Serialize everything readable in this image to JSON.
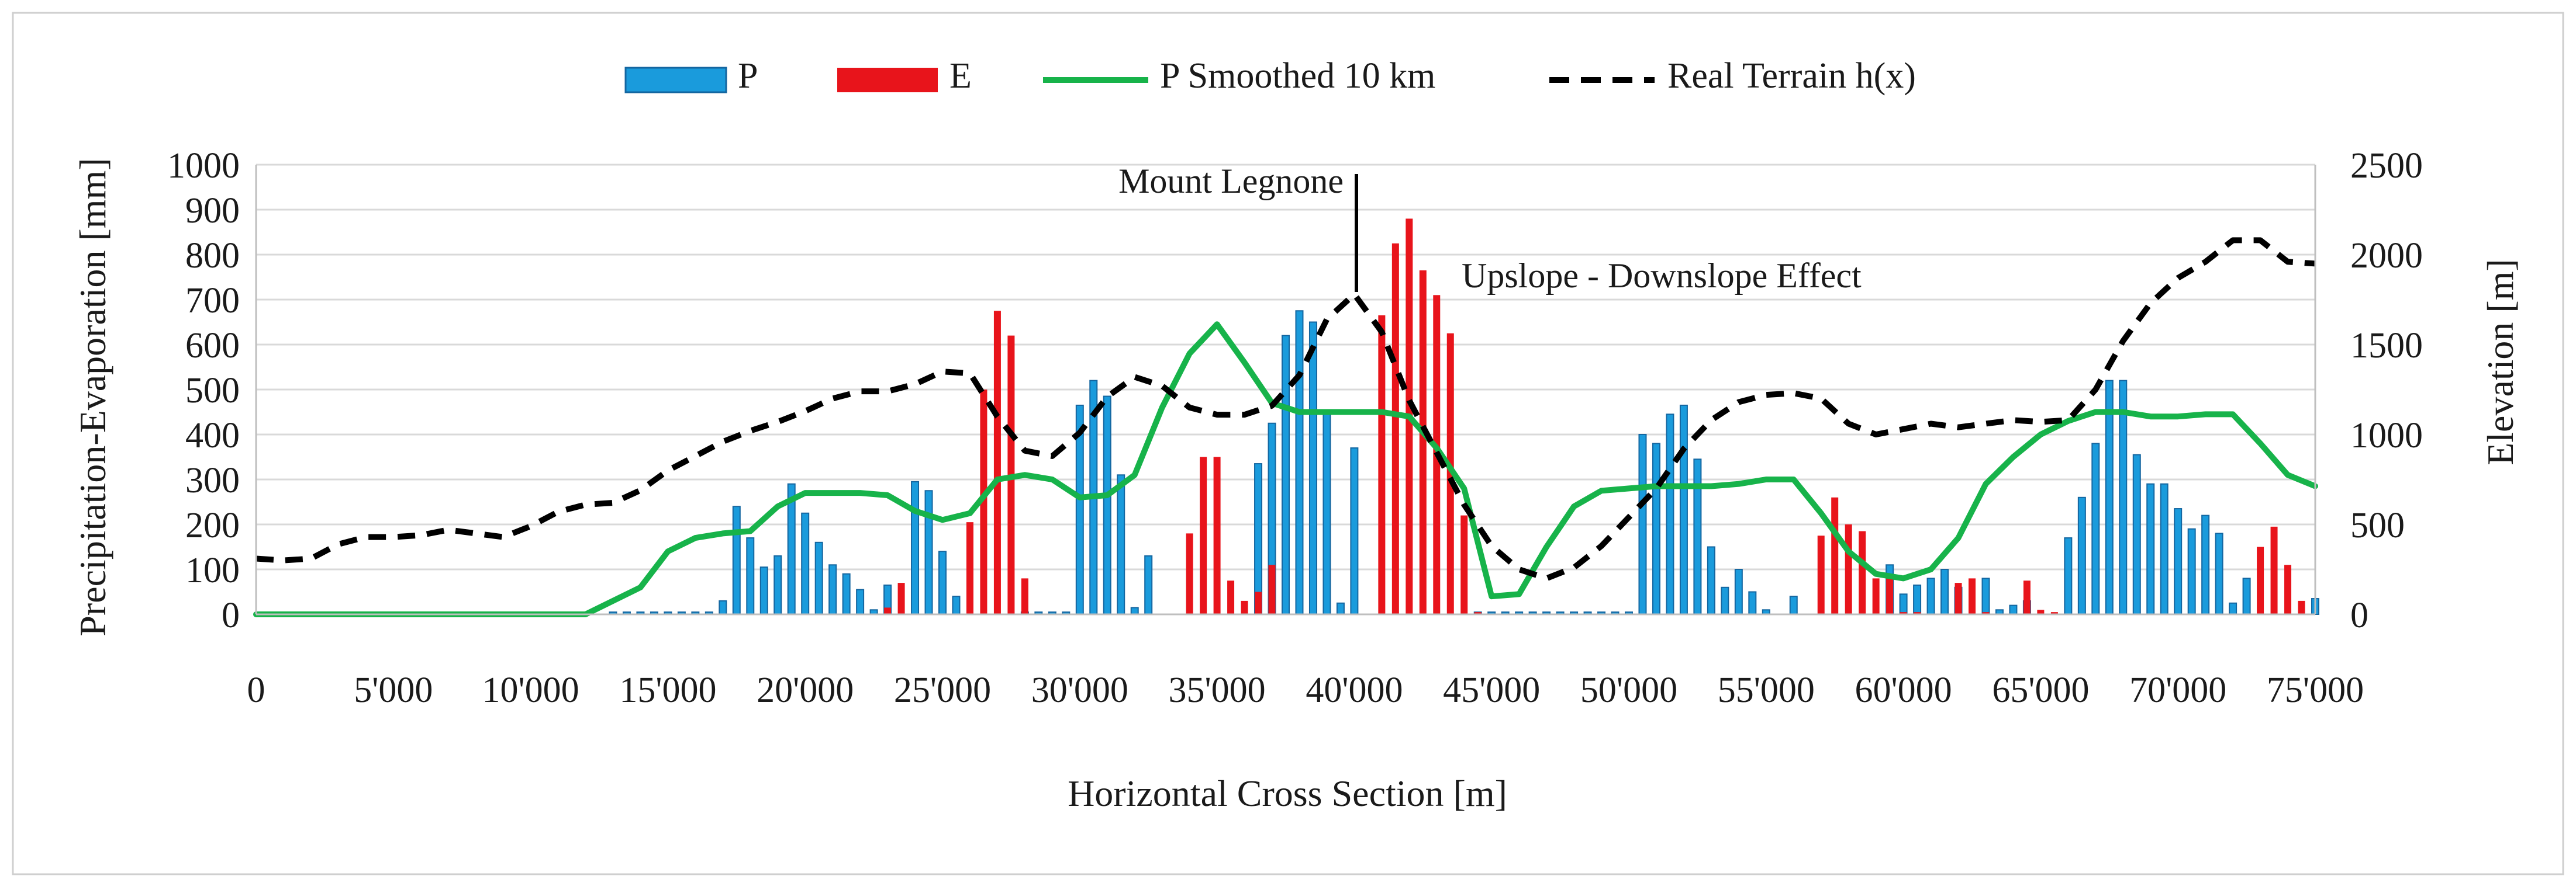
{
  "chart_data": {
    "type": "bar",
    "xlabel": "Horizontal Cross Section [m]",
    "ylabel": "Precipitation-Evaporation [mm]",
    "y2label": "Elevation [m]",
    "xlim": [
      0,
      75000
    ],
    "ylim": [
      0,
      1000
    ],
    "y2lim": [
      0,
      2500
    ],
    "x_ticks": [
      0,
      5000,
      10000,
      15000,
      20000,
      25000,
      30000,
      35000,
      40000,
      45000,
      50000,
      55000,
      60000,
      65000,
      70000,
      75000
    ],
    "x_tick_labels": [
      "0",
      "5'000",
      "10'000",
      "15'000",
      "20'000",
      "25'000",
      "30'000",
      "35'000",
      "40'000",
      "45'000",
      "50'000",
      "55'000",
      "60'000",
      "65'000",
      "70'000",
      "75'000"
    ],
    "y_ticks": [
      0,
      100,
      200,
      300,
      400,
      500,
      600,
      700,
      800,
      900,
      1000
    ],
    "y_tick_labels": [
      "0",
      "100",
      "200",
      "300",
      "400",
      "500",
      "600",
      "700",
      "800",
      "900",
      "1000"
    ],
    "y2_ticks": [
      0,
      500,
      1000,
      1500,
      2000,
      2500
    ],
    "y2_tick_labels": [
      "0",
      "500",
      "1000",
      "1500",
      "2000",
      "2500"
    ],
    "grid": true,
    "legend_position": "top-center",
    "legend": [
      {
        "label": "P",
        "kind": "bar",
        "color": "#1a9bdc"
      },
      {
        "label": "E",
        "kind": "bar",
        "color": "#e8141b"
      },
      {
        "label": "P Smoothed 10 km",
        "kind": "line",
        "color": "#17b34a"
      },
      {
        "label": "Real Terrain h(x)",
        "kind": "dashed-line",
        "color": "#000000"
      }
    ],
    "annotations": [
      {
        "text": "Mount Legnone",
        "x": 40000,
        "y": 950,
        "pointer_to_y": 720
      },
      {
        "text": "Upslope - Downslope Effect",
        "x": 53000,
        "y": 750
      }
    ],
    "series": [
      {
        "name": "P",
        "color": "#1a9bdc",
        "x": [
          13000,
          13500,
          14000,
          14500,
          15000,
          15500,
          16000,
          16500,
          17000,
          17500,
          18000,
          18500,
          19000,
          19500,
          20000,
          20500,
          21000,
          21500,
          22000,
          22500,
          23000,
          24000,
          24500,
          25000,
          25500,
          28000,
          28500,
          29000,
          29500,
          30000,
          30500,
          31000,
          31500,
          32000,
          32500,
          36500,
          37000,
          37500,
          38000,
          38500,
          39000,
          39500,
          40000,
          44500,
          45000,
          45500,
          46000,
          46500,
          47000,
          47500,
          48000,
          48500,
          49000,
          49500,
          50000,
          50500,
          51000,
          51500,
          52000,
          52500,
          53000,
          53500,
          54000,
          54500,
          55000,
          56000,
          59500,
          60000,
          60500,
          61000,
          61500,
          62000,
          63000,
          63500,
          64000,
          64500,
          66000,
          66500,
          67000,
          67500,
          68000,
          68500,
          69000,
          69500,
          70000,
          70500,
          71000,
          71500,
          72000,
          72500,
          75000
        ],
        "values": [
          5,
          5,
          5,
          5,
          5,
          5,
          5,
          5,
          30,
          240,
          170,
          105,
          130,
          290,
          225,
          160,
          110,
          90,
          55,
          10,
          65,
          295,
          275,
          140,
          40,
          5,
          5,
          5,
          5,
          465,
          520,
          485,
          310,
          15,
          130,
          335,
          425,
          620,
          675,
          650,
          455,
          25,
          370,
          5,
          5,
          5,
          5,
          5,
          5,
          5,
          5,
          5,
          5,
          5,
          5,
          400,
          380,
          445,
          465,
          345,
          150,
          60,
          100,
          50,
          10,
          40,
          110,
          45,
          65,
          80,
          100,
          60,
          80,
          10,
          20,
          30,
          170,
          260,
          380,
          520,
          520,
          355,
          290,
          290,
          235,
          190,
          220,
          180,
          25,
          80,
          35
        ]
      },
      {
        "name": "E",
        "color": "#e8141b",
        "x": [
          23000,
          23500,
          26000,
          26500,
          27000,
          27500,
          28000,
          34000,
          34500,
          35000,
          35500,
          36000,
          36500,
          37000,
          41000,
          41500,
          42000,
          42500,
          43000,
          43500,
          44000,
          44500,
          57000,
          57500,
          58000,
          58500,
          59000,
          59500,
          60000,
          60500,
          62000,
          62500,
          63000,
          64500,
          65000,
          65500,
          73000,
          73500,
          74000,
          74500
        ],
        "values": [
          15,
          70,
          205,
          500,
          675,
          620,
          80,
          180,
          350,
          350,
          75,
          30,
          50,
          110,
          665,
          825,
          880,
          765,
          710,
          625,
          220,
          5,
          175,
          260,
          200,
          185,
          80,
          85,
          5,
          5,
          70,
          80,
          5,
          75,
          10,
          5,
          150,
          195,
          110,
          30
        ]
      },
      {
        "name": "P Smoothed 10 km",
        "color": "#17b34a",
        "type": "line",
        "x": [
          0,
          12000,
          13000,
          14000,
          15000,
          16000,
          17000,
          18000,
          19000,
          20000,
          21000,
          22000,
          23000,
          24000,
          25000,
          26000,
          27000,
          28000,
          29000,
          30000,
          31000,
          32000,
          33000,
          34000,
          35000,
          36000,
          37000,
          38000,
          39000,
          40000,
          41000,
          42000,
          43000,
          44000,
          45000,
          46000,
          47000,
          48000,
          49000,
          50000,
          51000,
          52000,
          53000,
          54000,
          55000,
          56000,
          57000,
          58000,
          59000,
          60000,
          61000,
          62000,
          63000,
          64000,
          65000,
          66000,
          67000,
          68000,
          69000,
          70000,
          71000,
          72000,
          73000,
          74000,
          75000
        ],
        "values": [
          0,
          0,
          30,
          60,
          140,
          170,
          180,
          185,
          240,
          270,
          270,
          270,
          265,
          230,
          210,
          225,
          300,
          310,
          300,
          260,
          265,
          310,
          460,
          580,
          645,
          560,
          470,
          450,
          450,
          450,
          450,
          440,
          370,
          280,
          40,
          45,
          150,
          240,
          275,
          280,
          285,
          285,
          285,
          290,
          300,
          300,
          225,
          140,
          90,
          80,
          100,
          170,
          290,
          350,
          400,
          430,
          450,
          450,
          440,
          440,
          445,
          445,
          380,
          310,
          285
        ]
      },
      {
        "name": "Real Terrain h(x)",
        "color": "#000000",
        "type": "line",
        "axis": "right",
        "x": [
          0,
          1000,
          2000,
          3000,
          4000,
          5000,
          6000,
          7000,
          8000,
          9000,
          10000,
          11000,
          12000,
          13000,
          14000,
          15000,
          16000,
          17000,
          18000,
          19000,
          20000,
          21000,
          22000,
          23000,
          24000,
          25000,
          26000,
          27000,
          28000,
          29000,
          30000,
          31000,
          32000,
          33000,
          34000,
          35000,
          36000,
          37000,
          38000,
          39000,
          40000,
          41000,
          42000,
          43000,
          44000,
          45000,
          46000,
          47000,
          48000,
          49000,
          50000,
          51000,
          52000,
          53000,
          54000,
          55000,
          56000,
          57000,
          58000,
          59000,
          60000,
          61000,
          62000,
          63000,
          64000,
          65000,
          66000,
          67000,
          68000,
          69000,
          70000,
          71000,
          72000,
          73000,
          74000,
          75000
        ],
        "values": [
          310,
          300,
          310,
          390,
          430,
          430,
          440,
          470,
          450,
          430,
          490,
          570,
          610,
          620,
          690,
          800,
          880,
          960,
          1020,
          1070,
          1130,
          1200,
          1240,
          1240,
          1280,
          1350,
          1340,
          1100,
          910,
          880,
          1010,
          1210,
          1320,
          1270,
          1150,
          1110,
          1110,
          1160,
          1330,
          1640,
          1780,
          1570,
          1190,
          900,
          610,
          380,
          250,
          200,
          260,
          380,
          540,
          700,
          920,
          1080,
          1180,
          1220,
          1230,
          1200,
          1060,
          1000,
          1030,
          1060,
          1040,
          1060,
          1080,
          1070,
          1080,
          1250,
          1520,
          1730,
          1870,
          1960,
          2080,
          2080,
          1960,
          1950
        ]
      }
    ]
  }
}
